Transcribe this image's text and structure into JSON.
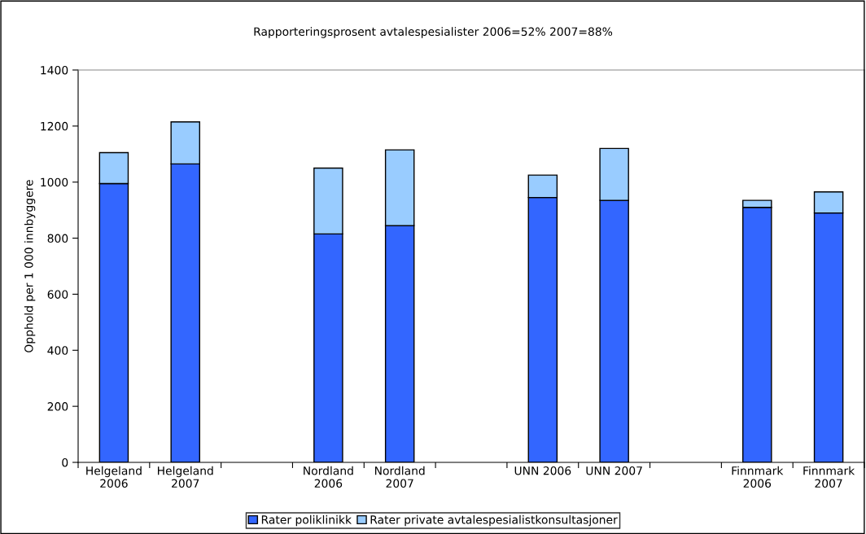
{
  "chart_data": {
    "type": "bar",
    "stacked": true,
    "title": "Rapporteringsprosent avtalespesialister 2006=52% 2007=88%",
    "ylabel": "Opphold per 1 000 innbyggere",
    "categories": [
      "Helgeland\n2006",
      "Helgeland\n2007",
      null,
      "Nordland\n2006",
      "Nordland\n2007",
      null,
      "UNN 2006",
      "UNN 2007",
      null,
      "Finnmark\n2006",
      "Finnmark\n2007"
    ],
    "series": [
      {
        "name": "Rater poliklinikk",
        "color": "#3366ff",
        "values": [
          995,
          1065,
          null,
          815,
          845,
          null,
          945,
          935,
          null,
          910,
          890
        ]
      },
      {
        "name": "Rater private avtalespesialistkonsultasjoner",
        "color": "#99ccff",
        "values": [
          110,
          150,
          null,
          235,
          270,
          null,
          80,
          185,
          null,
          25,
          75
        ]
      }
    ],
    "ylim": [
      0,
      1400
    ],
    "yticks": [
      0,
      200,
      400,
      600,
      800,
      1000,
      1200,
      1400
    ],
    "grid": false,
    "legend": "bottom"
  }
}
